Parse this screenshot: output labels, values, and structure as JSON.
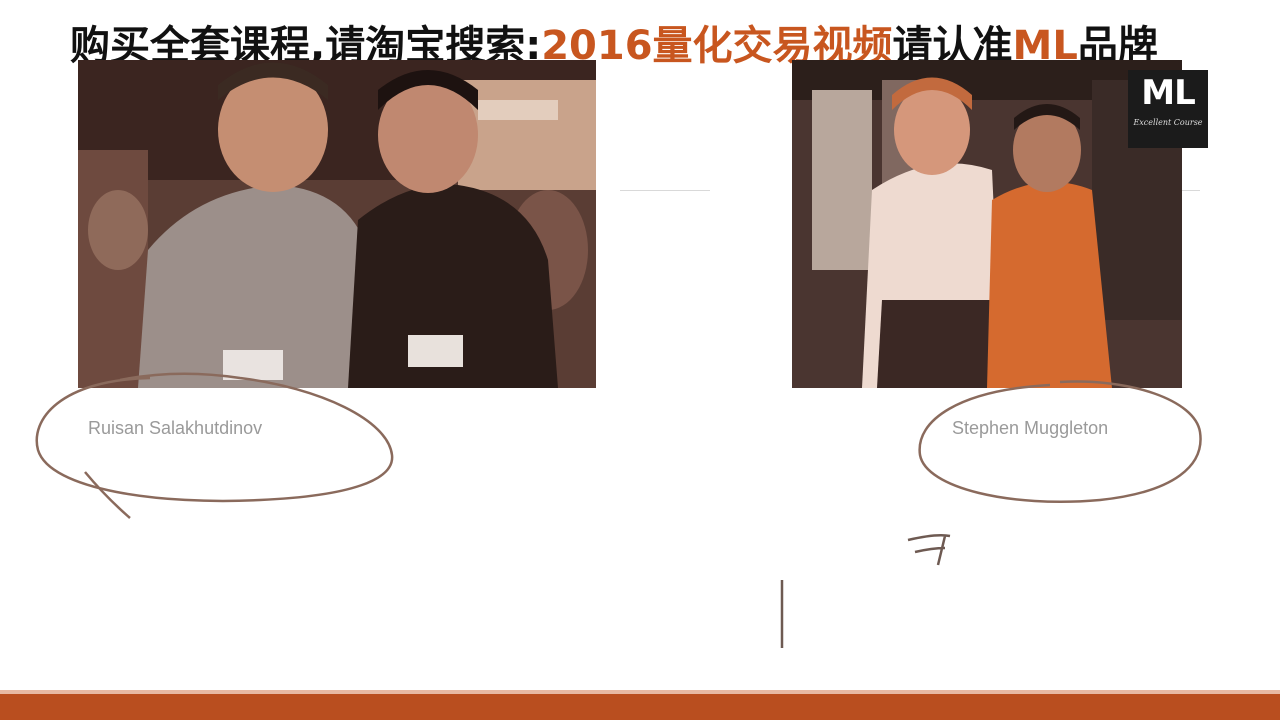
{
  "banner": {
    "part1": "购买全套课程,请淘宝搜索:",
    "part2": "2016量化交易视频",
    "part3": "请认准",
    "part4": "ML",
    "part5": "品牌"
  },
  "logo": {
    "mark": "ML",
    "subtitle": "Excellent Course"
  },
  "people": {
    "left_name": "Ruisan Salakhutdinov",
    "right_name": "Stephen Muggleton"
  },
  "colors": {
    "accent": "#c8561f",
    "bottom_bar": "#b94e1f",
    "ink": "#7a5a4a"
  }
}
